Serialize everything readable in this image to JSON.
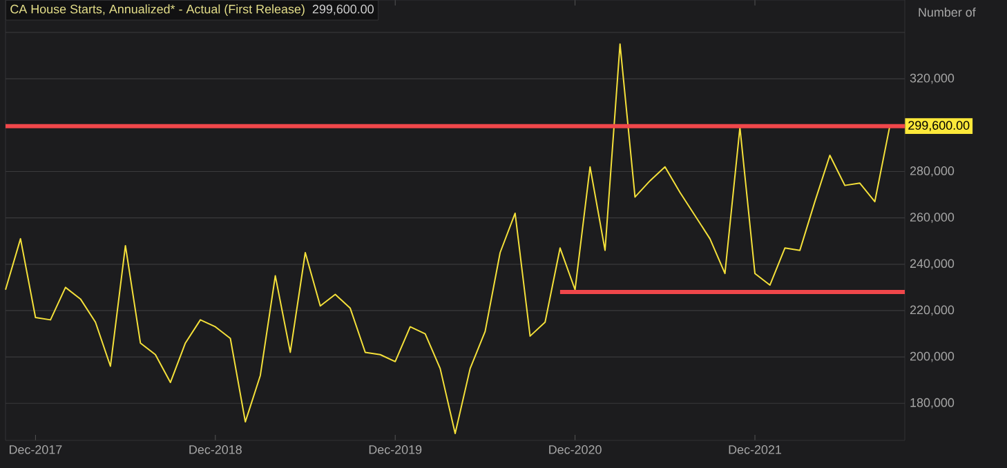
{
  "chart_data": {
    "type": "line",
    "title": "CA House Starts, Annualized* - Actual (First Release)",
    "annotations": [
      "299,600.00"
    ],
    "ylabel": "Number of",
    "x": [
      "2017-10",
      "2017-11",
      "2017-12",
      "2018-01",
      "2018-02",
      "2018-03",
      "2018-04",
      "2018-05",
      "2018-06",
      "2018-07",
      "2018-08",
      "2018-09",
      "2018-10",
      "2018-11",
      "2018-12",
      "2019-01",
      "2019-02",
      "2019-03",
      "2019-04",
      "2019-05",
      "2019-06",
      "2019-07",
      "2019-08",
      "2019-09",
      "2019-10",
      "2019-11",
      "2019-12",
      "2020-01",
      "2020-02",
      "2020-03",
      "2020-04",
      "2020-05",
      "2020-06",
      "2020-07",
      "2020-08",
      "2020-09",
      "2020-10",
      "2020-11",
      "2020-12",
      "2021-01",
      "2021-02",
      "2021-03",
      "2021-04",
      "2021-05",
      "2021-06",
      "2021-07",
      "2021-08",
      "2021-09",
      "2021-10",
      "2021-11",
      "2021-12",
      "2022-01",
      "2022-02",
      "2022-03",
      "2022-04",
      "2022-05",
      "2022-06",
      "2022-07",
      "2022-08",
      "2022-09"
    ],
    "series": [
      {
        "color": "#f5e13a",
        "values": [
          229000,
          251000,
          217000,
          216000,
          230000,
          225000,
          215000,
          196000,
          248000,
          206000,
          201000,
          189000,
          206000,
          216000,
          213000,
          208000,
          172000,
          192000,
          235000,
          202000,
          245000,
          222000,
          227000,
          221000,
          202000,
          201000,
          198000,
          213000,
          210000,
          195000,
          167000,
          195000,
          211000,
          245000,
          262000,
          209000,
          215000,
          247000,
          229000,
          282000,
          246000,
          335000,
          269000,
          276000,
          282000,
          271000,
          261000,
          251000,
          236000,
          299000,
          236000,
          231000,
          247000,
          246000,
          267000,
          287000,
          274000,
          275000,
          267000,
          299600
        ]
      },
      {
        "type": "line",
        "color": "#f0474b",
        "x": [
          "2020-11",
          "2022-10"
        ],
        "values": [
          228000,
          228000
        ]
      }
    ],
    "ref_lines": [
      {
        "axis": "y",
        "value": 299600,
        "label": "299,600.00",
        "color": "#f0474b"
      }
    ],
    "xlim": [
      "2017-10",
      "2022-10"
    ],
    "xticks": [
      {
        "value": "2017-12",
        "label": "Dec-2017"
      },
      {
        "value": "2018-12",
        "label": "Dec-2018"
      },
      {
        "value": "2019-12",
        "label": "Dec-2019"
      },
      {
        "value": "2020-12",
        "label": "Dec-2020"
      },
      {
        "value": "2021-12",
        "label": "Dec-2021"
      }
    ],
    "ylim": [
      164000,
      354000
    ],
    "yticks": [
      {
        "value": 180000,
        "label": "180,000"
      },
      {
        "value": 200000,
        "label": "200,000"
      },
      {
        "value": 220000,
        "label": "220,000"
      },
      {
        "value": 240000,
        "label": "240,000"
      },
      {
        "value": 260000,
        "label": "260,000"
      },
      {
        "value": 280000,
        "label": "280,000"
      },
      {
        "value": 300000,
        "label": null
      },
      {
        "value": 320000,
        "label": "320,000"
      },
      {
        "value": 340000,
        "label": null
      }
    ],
    "grid": "y",
    "marker": "none",
    "line_style": "solid"
  }
}
